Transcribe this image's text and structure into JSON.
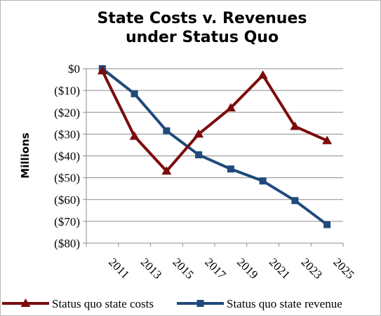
{
  "chart_data": {
    "type": "line",
    "title_lines": [
      "State Costs v. Revenues",
      "under Status Quo"
    ],
    "ylabel": "Millions",
    "xlabel": "",
    "categories": [
      "2011",
      "2013",
      "2015",
      "2017",
      "2019",
      "2021",
      "2023",
      "2025"
    ],
    "ylim": [
      -80,
      0
    ],
    "yticks": [
      0,
      -10,
      -20,
      -30,
      -40,
      -50,
      -60,
      -70,
      -80
    ],
    "ytick_labels": [
      "$0",
      "($10)",
      "($20)",
      "($30)",
      "($40)",
      "($50)",
      "($60)",
      "($70)",
      "($80)"
    ],
    "grid": true,
    "legend_position": "bottom",
    "series": [
      {
        "name": "Status quo state costs",
        "marker": "triangle",
        "color": "#7b0c0c",
        "values": [
          -1,
          -31,
          -47,
          -30,
          -18,
          -3,
          -26.5,
          -33
        ]
      },
      {
        "name": "Status quo state revenue",
        "marker": "square",
        "color": "#1f4a7a",
        "values": [
          0,
          -11.5,
          -28.5,
          -39.5,
          -46,
          -51.5,
          -60.5,
          -71.5
        ]
      }
    ]
  }
}
